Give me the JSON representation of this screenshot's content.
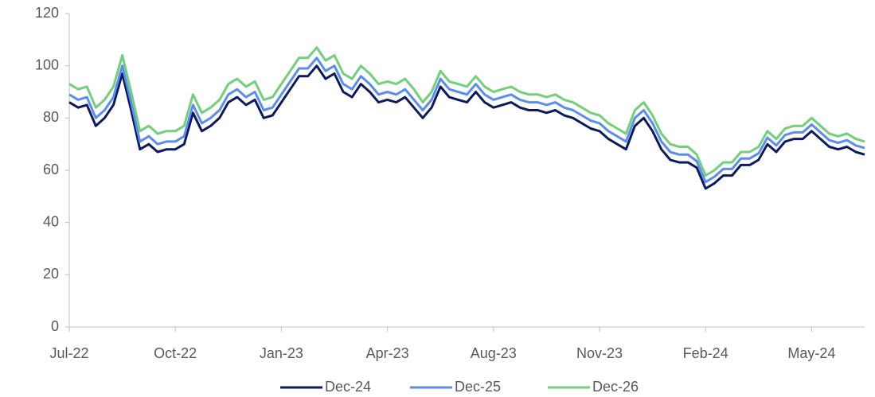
{
  "chart_data": {
    "type": "line",
    "categories": [
      "Jul-22",
      null,
      null,
      null,
      null,
      null,
      null,
      null,
      null,
      null,
      null,
      null,
      "Oct-22",
      null,
      null,
      null,
      null,
      null,
      null,
      null,
      null,
      null,
      null,
      null,
      "Jan-23",
      null,
      null,
      null,
      null,
      null,
      null,
      null,
      null,
      null,
      null,
      null,
      "Apr-23",
      null,
      null,
      null,
      null,
      null,
      null,
      null,
      null,
      null,
      null,
      null,
      "Aug-23",
      null,
      null,
      null,
      null,
      null,
      null,
      null,
      null,
      null,
      null,
      null,
      "Nov-23",
      null,
      null,
      null,
      null,
      null,
      null,
      null,
      null,
      null,
      null,
      null,
      "Feb-24",
      null,
      null,
      null,
      null,
      null,
      null,
      null,
      null,
      null,
      null,
      null,
      "May-24",
      null,
      null,
      null,
      null,
      null,
      null
    ],
    "series": [
      {
        "name": "Dec-24",
        "color": "#0d1b5e",
        "values": [
          86,
          84,
          85,
          77,
          80,
          85,
          97,
          83,
          68,
          70,
          67,
          68,
          68,
          70,
          82,
          75,
          77,
          80,
          86,
          88,
          85,
          87,
          80,
          81,
          86,
          91,
          96,
          96,
          100,
          95,
          97,
          90,
          88,
          93,
          90,
          86,
          87,
          86,
          88,
          84,
          80,
          84,
          92,
          88,
          87,
          86,
          90,
          86,
          84,
          85,
          86,
          84,
          83,
          83,
          82,
          83,
          81,
          80,
          78,
          76,
          75,
          72,
          70,
          68,
          77,
          80,
          75,
          68,
          64,
          63,
          63,
          61,
          53,
          55,
          58,
          58,
          62,
          62,
          64,
          70,
          67,
          71,
          72,
          72,
          75,
          72,
          69,
          68,
          69,
          67,
          66
        ]
      },
      {
        "name": "Dec-25",
        "color": "#5b8def",
        "values": [
          89,
          87,
          88,
          80,
          83,
          88,
          100,
          86,
          71,
          73,
          70,
          71,
          71,
          73,
          85,
          78,
          80,
          83,
          89,
          91,
          88,
          90,
          83,
          84,
          89,
          94,
          99,
          99,
          103,
          98,
          100,
          93,
          91,
          96,
          93,
          89,
          90,
          89,
          91,
          87,
          83,
          87,
          95,
          91,
          90,
          89,
          93,
          89,
          87,
          88,
          89,
          87,
          86,
          86,
          85,
          86,
          84,
          83,
          81,
          79,
          78,
          75,
          73,
          71,
          80,
          83,
          78,
          71,
          67,
          66,
          66,
          63.5,
          55.5,
          57.5,
          60.5,
          60.5,
          64.5,
          64.5,
          66.5,
          72.5,
          69.5,
          73.5,
          74.5,
          74.5,
          77.5,
          74.5,
          71.5,
          70.5,
          71.5,
          69.5,
          68.5
        ]
      },
      {
        "name": "Dec-26",
        "color": "#72cf7a",
        "values": [
          93,
          91,
          92,
          84,
          87,
          92,
          104,
          90,
          75,
          77,
          74,
          75,
          75,
          77,
          89,
          82,
          84,
          87,
          93,
          95,
          92,
          94,
          87,
          88,
          93,
          98,
          103,
          103,
          107,
          102,
          104,
          97,
          95,
          100,
          97,
          93,
          94,
          93,
          95,
          91,
          86,
          90,
          98,
          94,
          93,
          92,
          96,
          92,
          90,
          91,
          92,
          90,
          89,
          89,
          88,
          89,
          87,
          86,
          84,
          82,
          81,
          78,
          76,
          74,
          83,
          86,
          81,
          74,
          70,
          69,
          69,
          66,
          58,
          60,
          63,
          63,
          67,
          67,
          69,
          75,
          72,
          76,
          77,
          77,
          80,
          77,
          74,
          73,
          74,
          72,
          71
        ]
      }
    ],
    "ylim": [
      0,
      120
    ],
    "yticks": [
      0,
      20,
      40,
      60,
      80,
      100,
      120
    ],
    "legend": "bottom"
  }
}
